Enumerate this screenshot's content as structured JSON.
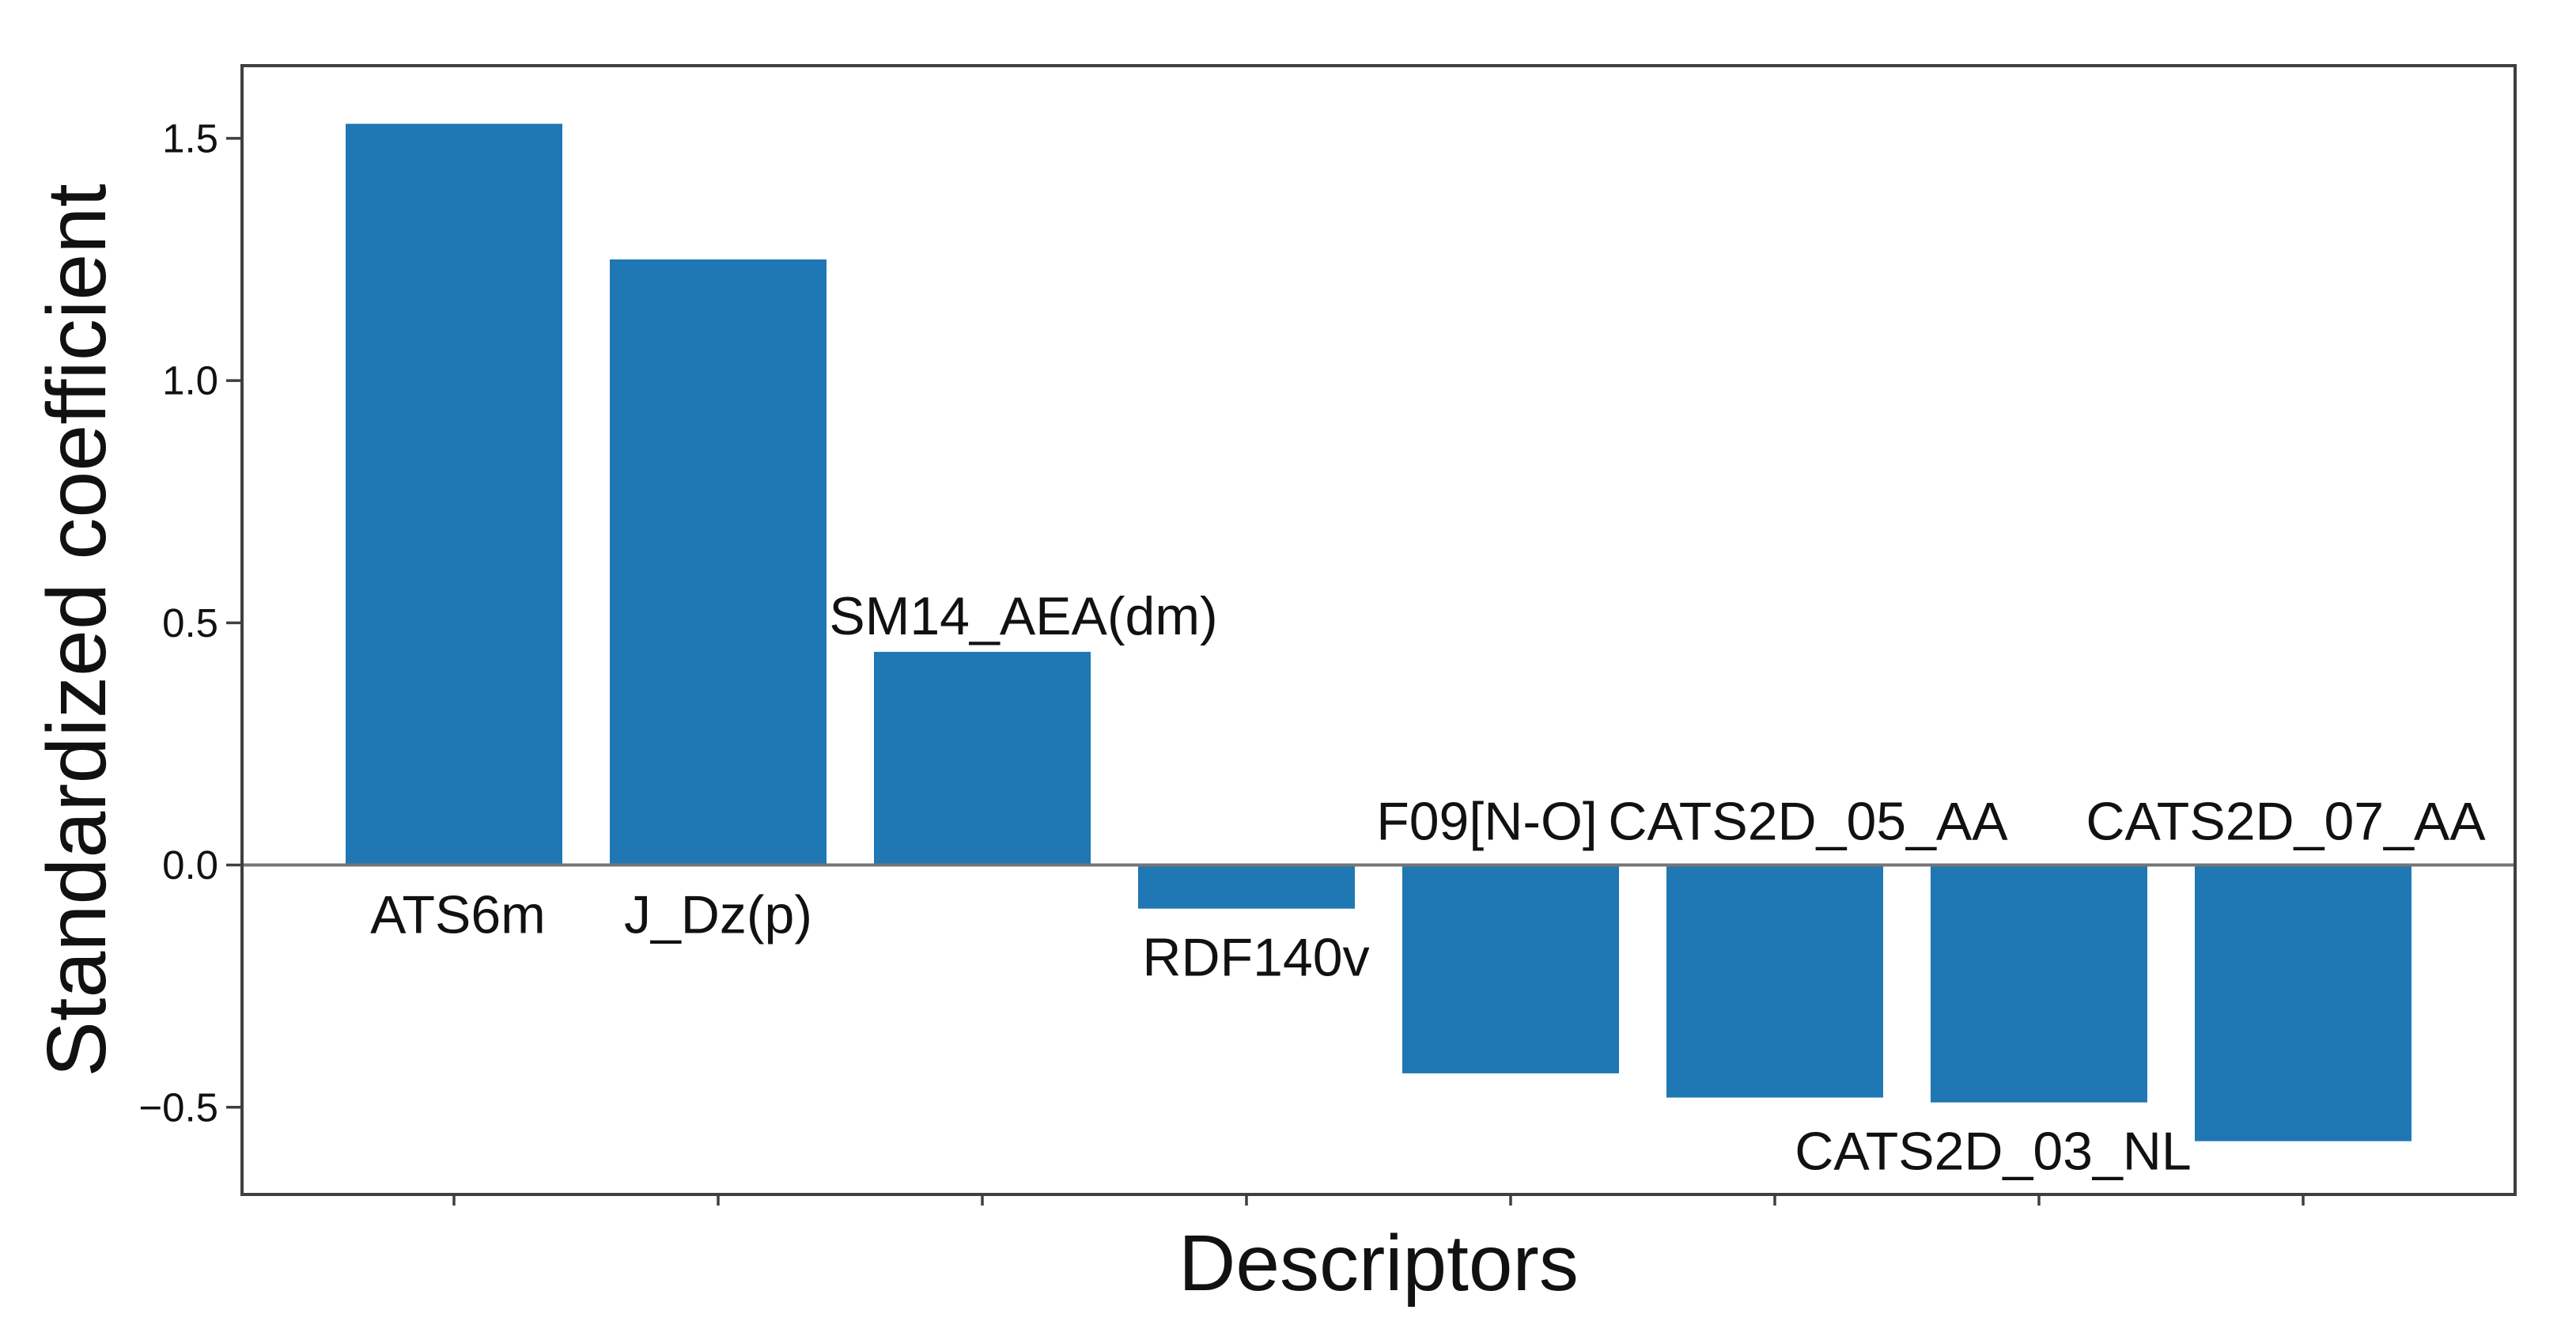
{
  "page": {
    "background": "#ffffff"
  },
  "chart_data": {
    "type": "bar",
    "title": "",
    "xlabel": "Descriptors",
    "ylabel": "Standardized coefficient",
    "categories": [
      "ATS6m",
      "J_Dz(p)",
      "SM14_AEA(dm)",
      "RDF140v",
      "F09[N-O]",
      "CATS2D_05_AA",
      "CATS2D_03_NL",
      "CATS2D_07_AA"
    ],
    "values": [
      1.53,
      1.25,
      0.44,
      -0.09,
      -0.43,
      -0.48,
      -0.49,
      -0.57
    ],
    "bar_color": "#1f77b4",
    "axis_color": "#3f3f3f",
    "zero_line_color": "#757575",
    "text_color": "#111111",
    "ylim": [
      -0.68,
      1.65
    ],
    "yticks": {
      "values": [
        1.5,
        1.0,
        0.5,
        0.0,
        -0.5
      ],
      "labels": [
        "1.5",
        "1.0",
        "0.5",
        "0.0",
        "−0.5"
      ]
    },
    "grid": false,
    "zero_line": true,
    "legend": null,
    "label_positions": [
      "below-axis",
      "below-axis",
      "above-bar",
      "below-bar",
      "above-axis",
      "above-axis",
      "below-bar",
      "above-axis"
    ]
  }
}
